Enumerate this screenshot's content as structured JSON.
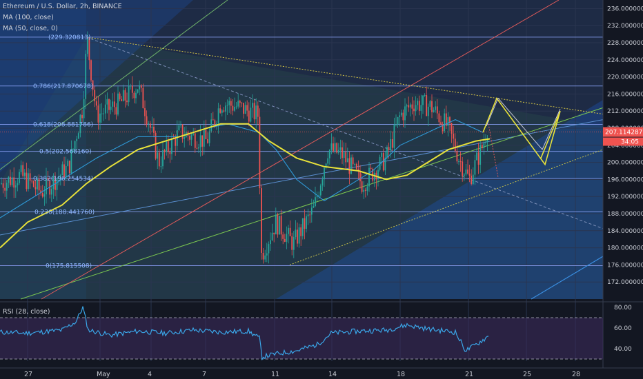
{
  "header": {
    "symbol": "Ethereum / U.S. Dollar, 2h, BINANCE",
    "ma100": "MA (100, close)",
    "ma50": "MA (50, close, 0)",
    "rsi": "RSI (28, close)"
  },
  "chart_data": {
    "type": "candlestick",
    "y_ticks": [
      "236.000000",
      "232.000000",
      "228.000000",
      "224.000000",
      "220.000000",
      "216.000000",
      "212.000000",
      "208.000000",
      "204.000000",
      "200.000000",
      "196.000000",
      "192.000000",
      "188.000000",
      "184.000000",
      "180.000000",
      "176.000000",
      "172.000000"
    ],
    "x_ticks": [
      "27",
      "May",
      "4",
      "7",
      "11",
      "14",
      "18",
      "21",
      "25",
      "28"
    ],
    "ylim": [
      168,
      238
    ],
    "last_price": "207.114287",
    "countdown": "34:05",
    "fib_levels": [
      {
        "label": "(229.320813)",
        "value": 229.32
      },
      {
        "label": "0.786(217.870678)",
        "value": 217.87
      },
      {
        "label": "0.618(208.881786)",
        "value": 208.88
      },
      {
        "label": "0.5(202.568160)",
        "value": 202.57
      },
      {
        "label": "0.382(196.254534)",
        "value": 196.25
      },
      {
        "label": "0.236(188.441760)",
        "value": 188.44
      },
      {
        "label": "0(175.815508)",
        "value": 175.82
      }
    ],
    "rsi_ticks": [
      "80.00",
      "60.00",
      "40.00"
    ],
    "rsi_range": [
      28,
      84
    ],
    "colors": {
      "up": "#26a69a",
      "down": "#ef5350",
      "ma100": "#e8e23a",
      "ma50": "#2f9ad8",
      "rsi": "#3aa6e8",
      "channel_red": "#e05a5a",
      "channel_green": "#7cc850",
      "fib": "#8fa7ff"
    }
  }
}
